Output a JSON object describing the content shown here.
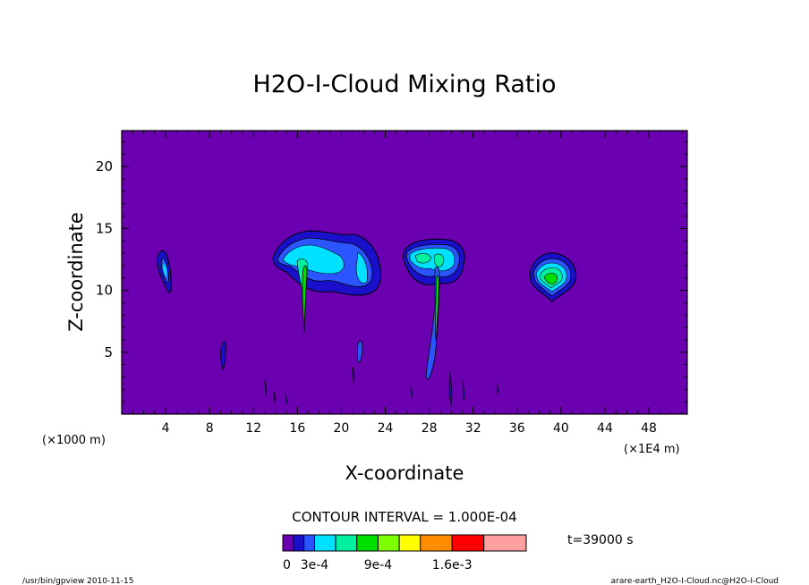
{
  "chart_data": {
    "type": "contour",
    "title": "H2O-I-Cloud Mixing Ratio",
    "xlabel": "X-coordinate",
    "ylabel": "Z-coordinate",
    "x_unit_label": "(×1000 m)",
    "x_scale_label": "(×1E4 m)",
    "xlim": [
      0,
      51.5
    ],
    "ylim": [
      0,
      22.9
    ],
    "x_ticks": [
      4,
      8,
      12,
      16,
      20,
      24,
      28,
      32,
      36,
      40,
      44,
      48
    ],
    "y_ticks": [
      5,
      10,
      15,
      20
    ],
    "x_tick_labels": [
      "4",
      "8",
      "12",
      "16",
      "20",
      "24",
      "28",
      "32",
      "36",
      "40",
      "44",
      "48"
    ],
    "y_tick_labels": [
      "5",
      "10",
      "15",
      "20"
    ],
    "contour_interval_text": "CONTOUR INTERVAL = 1.000E-04",
    "time_text": "t=39000 s",
    "colorbar": {
      "levels": [
        0,
        0.0001,
        0.0002,
        0.0003,
        0.0005,
        0.0007,
        0.0009,
        0.0011,
        0.0013,
        0.0016,
        0.0019,
        0.0023
      ],
      "colors": [
        "#6a00b0",
        "#1a10cc",
        "#2a55ff",
        "#00e0ff",
        "#00f0a0",
        "#00e000",
        "#7dff00",
        "#ffff00",
        "#ff8c00",
        "#ff0000",
        "#ffa0a0"
      ],
      "tick_labels": [
        "0",
        "3e-4",
        "9e-4",
        "1.6e-3"
      ]
    },
    "background_color": "#6a00b0",
    "cloud_features": [
      {
        "x": 4.2,
        "z_range": [
          9.7,
          13.2
        ],
        "max_level": "3e-4"
      },
      {
        "x": 17.5,
        "z_range": [
          6.7,
          14.8
        ],
        "max_level": "3e-4"
      },
      {
        "x": 21.8,
        "z_range": [
          10.2,
          14.0
        ],
        "max_level": "3e-4"
      },
      {
        "x": 29.0,
        "z_range": [
          2.4,
          14.0
        ],
        "max_level": "5e-4"
      },
      {
        "x": 38.8,
        "z_range": [
          9.0,
          13.4
        ],
        "max_level": "9e-4"
      }
    ],
    "footer_left": "/usr/bin/gpview  2010-11-15",
    "footer_right": "arare-earth_H2O-I-Cloud.nc@H2O-I-Cloud"
  }
}
